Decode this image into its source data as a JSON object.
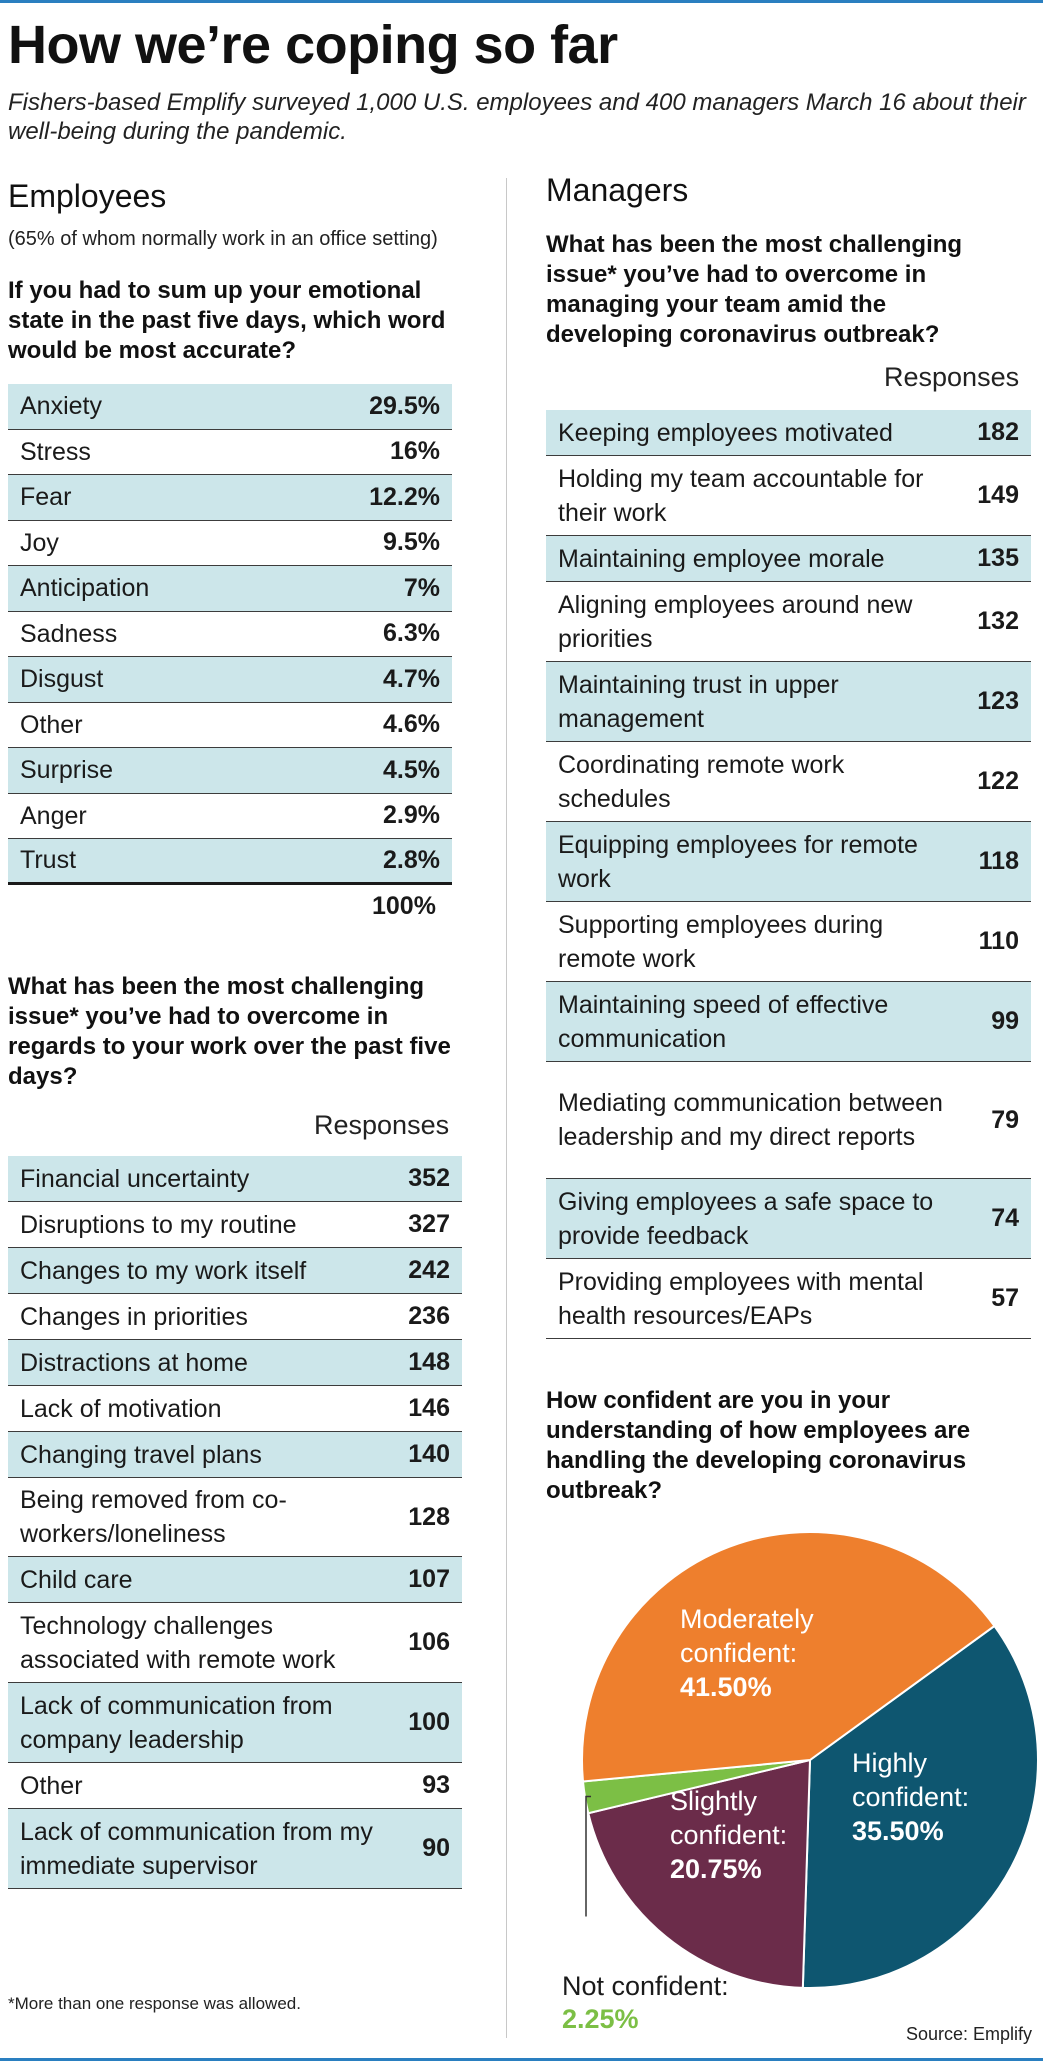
{
  "title": "How we’re coping so far",
  "subtitle": "Fishers-based Emplify surveyed 1,000 U.S. employees and 400 managers March 16 about their well-being during the pandemic.",
  "employees": {
    "heading": "Employees",
    "note": "(65% of whom normally work in an office setting)",
    "q1": "If you had to sum up your emotional state in the past five days, which word would be most accurate?",
    "emotions": [
      {
        "label": "Anxiety",
        "value": "29.5%"
      },
      {
        "label": "Stress",
        "value": "16%"
      },
      {
        "label": "Fear",
        "value": "12.2%"
      },
      {
        "label": "Joy",
        "value": "9.5%"
      },
      {
        "label": "Anticipation",
        "value": "7%"
      },
      {
        "label": "Sadness",
        "value": "6.3%"
      },
      {
        "label": "Disgust",
        "value": "4.7%"
      },
      {
        "label": "Other",
        "value": "4.6%"
      },
      {
        "label": "Surprise",
        "value": "4.5%"
      },
      {
        "label": "Anger",
        "value": "2.9%"
      },
      {
        "label": "Trust",
        "value": "2.8%"
      }
    ],
    "emotions_total": "100%",
    "q2": "What has been the most challenging issue* you’ve had to overcome in regards to your work over the past five days?",
    "responses_header": "Responses",
    "challenges": [
      {
        "label": "Financial uncertainty",
        "value": "352"
      },
      {
        "label": "Disruptions to my routine",
        "value": "327"
      },
      {
        "label": "Changes to my work itself",
        "value": "242"
      },
      {
        "label": "Changes in priorities",
        "value": "236"
      },
      {
        "label": "Distractions at home",
        "value": "148"
      },
      {
        "label": "Lack of motivation",
        "value": "146"
      },
      {
        "label": "Changing travel plans",
        "value": "140"
      },
      {
        "label": "Being removed from co-workers/loneliness",
        "value": "128"
      },
      {
        "label": "Child care",
        "value": "107"
      },
      {
        "label": "Technology challenges associated with remote work",
        "value": "106"
      },
      {
        "label": "Lack of communication from company leadership",
        "value": "100"
      },
      {
        "label": "Other",
        "value": "93"
      },
      {
        "label": "Lack of communication from my immediate supervisor",
        "value": "90"
      }
    ]
  },
  "managers": {
    "heading": "Managers",
    "q1": "What has been the most challenging issue* you’ve had to overcome in managing your team amid the developing coronavirus outbreak?",
    "responses_header": "Responses",
    "challenges": [
      {
        "label": "Keeping employees motivated",
        "value": "182"
      },
      {
        "label": "Holding my team accountable for their work",
        "value": "149"
      },
      {
        "label": "Maintaining employee morale",
        "value": "135"
      },
      {
        "label": "Aligning employees around new priorities",
        "value": "132"
      },
      {
        "label": "Maintaining trust in upper management",
        "value": "123"
      },
      {
        "label": "Coordinating remote work schedules",
        "value": "122"
      },
      {
        "label": "Equipping employees for remote work",
        "value": "118"
      },
      {
        "label": "Supporting employees during remote work",
        "value": "110"
      },
      {
        "label": "Maintaining speed of effective communication",
        "value": "99"
      },
      {
        "label": "Mediating communication between leadership and my direct reports",
        "value": "79"
      },
      {
        "label": "Giving employees a safe space to provide feedback",
        "value": "74"
      },
      {
        "label": "Providing employees with mental health resources/EAPs",
        "value": "57"
      }
    ],
    "q2": "How confident are you in your understanding of how employees are handling the developing coronavirus outbreak?"
  },
  "chart_data": {
    "type": "pie",
    "title": "How confident are you in your understanding of how employees are handling the developing coronavirus outbreak?",
    "slices": [
      {
        "label": "Highly confident:",
        "pct_text": "35.50%",
        "value": 35.5,
        "color": "#0e5670"
      },
      {
        "label": "Slightly confident:",
        "pct_text": "20.75%",
        "value": 20.75,
        "color": "#6b2c4a"
      },
      {
        "label": "Not confident:",
        "pct_text": "2.25%",
        "value": 2.25,
        "color": "#7cbf45"
      },
      {
        "label": "Moderately confident:",
        "pct_text": "41.50%",
        "value": 41.5,
        "color": "#ee7f2d"
      }
    ]
  },
  "footnote": "*More than one response was allowed.",
  "source": "Source: Emplify"
}
